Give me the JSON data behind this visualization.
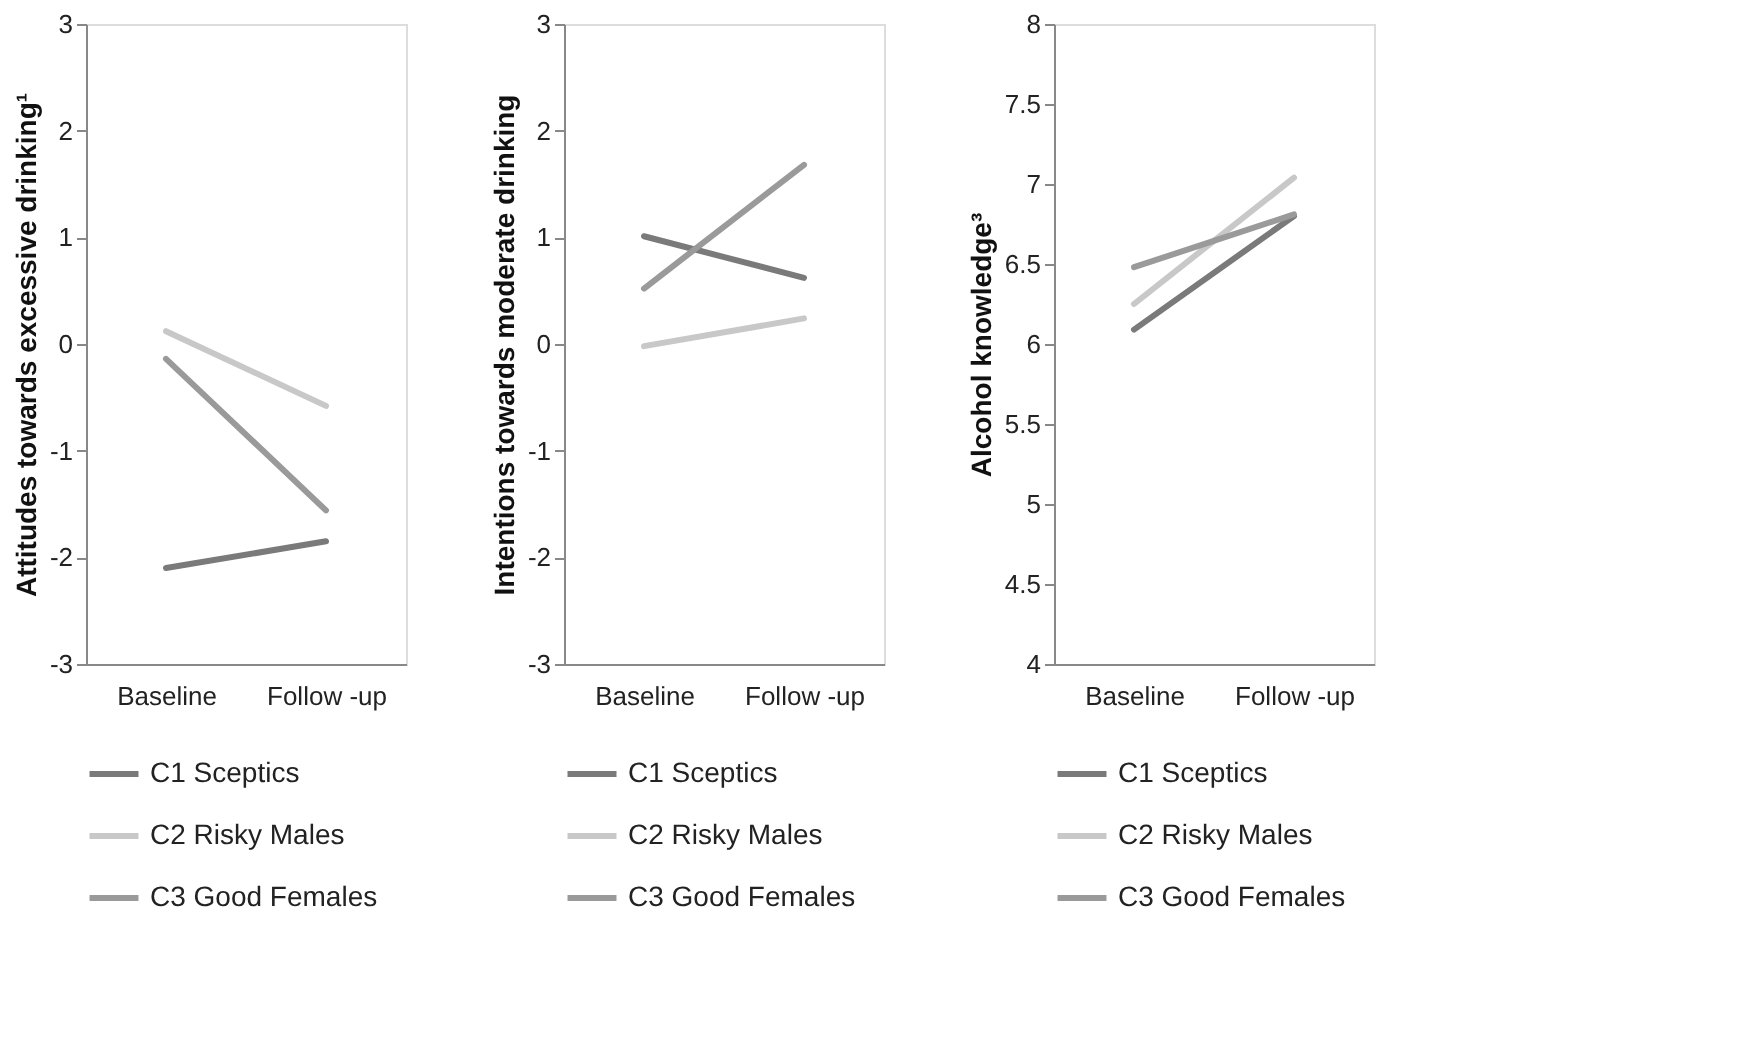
{
  "chart_data": [
    {
      "type": "line",
      "categories": [
        "Baseline",
        "Follow -up"
      ],
      "ylabel": "Attitudes towards excessive drinking¹",
      "ylim": [
        -3,
        3
      ],
      "yticks": [
        -3,
        -2,
        -1,
        0,
        1,
        2,
        3
      ],
      "grid": false,
      "legend": "bottom",
      "series": [
        {
          "name": "C1 Sceptics",
          "color": "#7a7a7a",
          "values": [
            -2.1,
            -1.85
          ]
        },
        {
          "name": "C2 Risky Males",
          "color": "#c8c8c8",
          "values": [
            0.12,
            -0.58
          ]
        },
        {
          "name": "C3 Good Females",
          "color": "#9a9a9a",
          "values": [
            -0.14,
            -1.56
          ]
        }
      ]
    },
    {
      "type": "line",
      "categories": [
        "Baseline",
        "Follow -up"
      ],
      "ylabel": "Intentions towards moderate drinking",
      "ylim": [
        -3,
        3
      ],
      "yticks": [
        -3,
        -2,
        -1,
        0,
        1,
        2,
        3
      ],
      "grid": false,
      "legend": "bottom",
      "series": [
        {
          "name": "C1 Sceptics",
          "color": "#7a7a7a",
          "values": [
            1.01,
            0.62
          ]
        },
        {
          "name": "C2 Risky Males",
          "color": "#c8c8c8",
          "values": [
            -0.02,
            0.24
          ]
        },
        {
          "name": "C3 Good Females",
          "color": "#9a9a9a",
          "values": [
            0.52,
            1.68
          ]
        }
      ]
    },
    {
      "type": "line",
      "categories": [
        "Baseline",
        "Follow -up"
      ],
      "ylabel": "Alcohol knowledge³",
      "ylim": [
        4,
        8
      ],
      "yticks": [
        4,
        4.5,
        5,
        5.5,
        6,
        6.5,
        7,
        7.5,
        8
      ],
      "grid": false,
      "legend": "bottom",
      "series": [
        {
          "name": "C1 Sceptics",
          "color": "#7a7a7a",
          "values": [
            6.09,
            6.8
          ]
        },
        {
          "name": "C2 Risky Males",
          "color": "#c8c8c8",
          "values": [
            6.25,
            7.04
          ]
        },
        {
          "name": "C3 Good Females",
          "color": "#9a9a9a",
          "values": [
            6.48,
            6.81
          ]
        }
      ]
    }
  ]
}
